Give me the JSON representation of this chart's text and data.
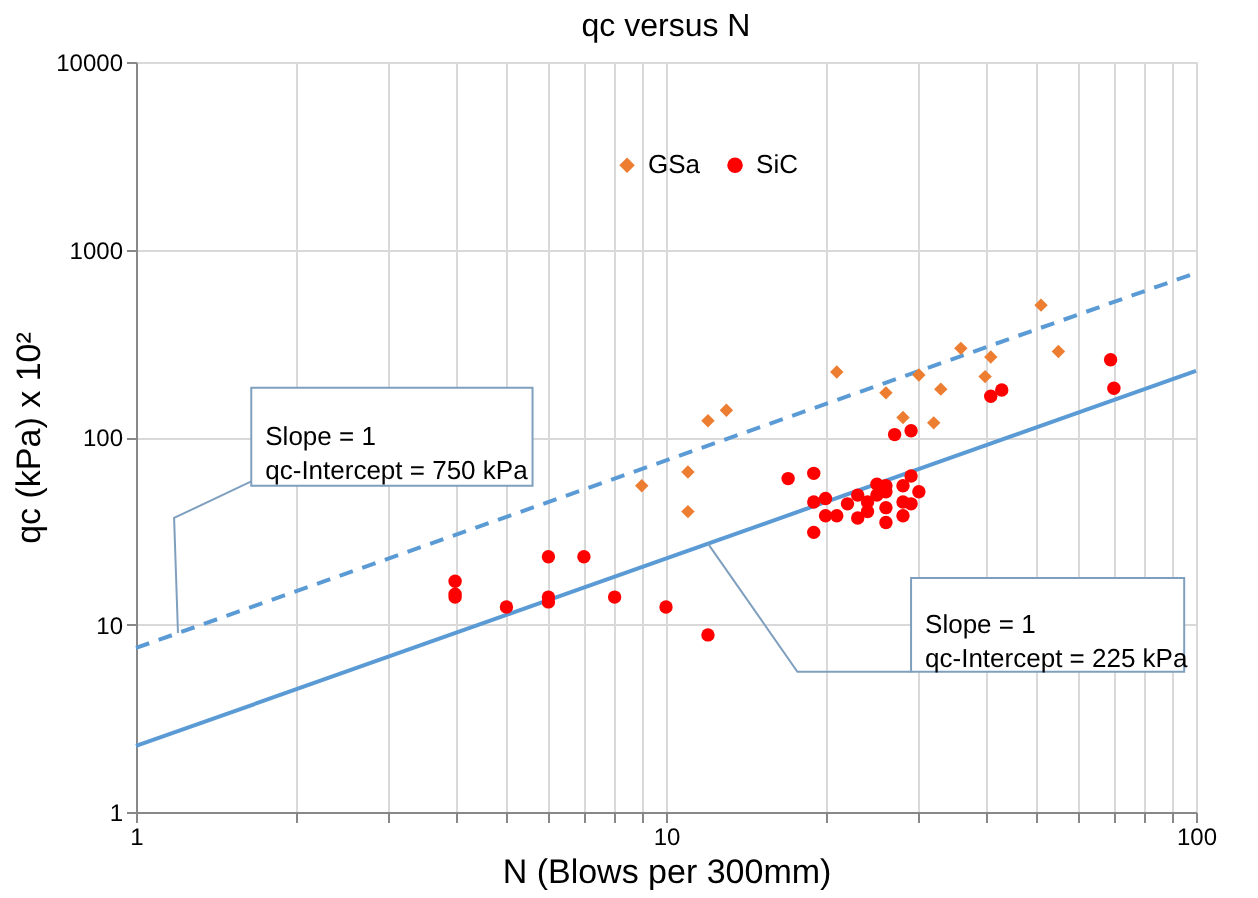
{
  "chart_data": {
    "type": "scatter",
    "title": "qc versus N",
    "xlabel": "N (Blows per 300mm)",
    "ylabel": "qc (kPa) x 10²",
    "log": "xy",
    "grid": true,
    "legend": "top",
    "xlim": [
      1,
      100
    ],
    "xticks": [
      1,
      {
        "value": 2,
        "label": null
      },
      {
        "value": 3,
        "label": null
      },
      {
        "value": 4,
        "label": null
      },
      {
        "value": 5,
        "label": null
      },
      {
        "value": 6,
        "label": null
      },
      {
        "value": 7,
        "label": null
      },
      {
        "value": 8,
        "label": null
      },
      {
        "value": 9,
        "label": null
      },
      10,
      {
        "value": 20,
        "label": null
      },
      {
        "value": 30,
        "label": null
      },
      {
        "value": 40,
        "label": null
      },
      {
        "value": 50,
        "label": null
      },
      {
        "value": 60,
        "label": null
      },
      {
        "value": 70,
        "label": null
      },
      {
        "value": 80,
        "label": null
      },
      {
        "value": 90,
        "label": null
      },
      100
    ],
    "ylim": [
      1,
      10000
    ],
    "yticks": [
      1,
      10,
      100,
      1000,
      10000
    ],
    "series": [
      {
        "name": "GSa",
        "marker": "diamond",
        "color": "#ed7d31",
        "x": [
          9,
          12,
          13,
          11,
          11,
          21,
          26,
          30,
          28,
          33,
          32,
          36,
          40,
          41,
          51,
          55
        ],
        "values": [
          55,
          122,
          139,
          65,
          40,
          222,
          172,
          214,
          127,
          180,
          119,
          297,
          210,
          267,
          505,
          286
        ]
      },
      {
        "name": "SiC",
        "marker": "circle",
        "color": "#ff0000",
        "x": [
          4,
          4,
          4,
          5,
          6,
          6,
          6,
          7,
          8,
          10,
          12,
          17,
          19,
          19,
          19,
          20,
          20,
          21,
          22,
          23,
          23,
          24,
          24,
          25,
          25,
          26,
          26,
          26,
          26,
          27,
          28,
          28,
          28,
          29,
          29,
          29,
          30,
          41,
          43,
          69,
          70
        ],
        "values": [
          17,
          14.5,
          14,
          12.4,
          23,
          14,
          13.2,
          23,
          14,
          12.4,
          8.8,
          60,
          64,
          45,
          31,
          47,
          38,
          38,
          44,
          49,
          37,
          45,
          40,
          56,
          49,
          55,
          51,
          42,
          35,
          103,
          55,
          45,
          38,
          62,
          108,
          44,
          51,
          165,
          178,
          258,
          182
        ]
      },
      {
        "type": "line",
        "line_style": "solid",
        "marker": "none",
        "color": "#5b9bd5",
        "x": [
          1,
          100
        ],
        "values": [
          2.25,
          225
        ]
      },
      {
        "type": "line",
        "line_style": "dashed",
        "marker": "none",
        "color": "#5b9bd5",
        "x": [
          1,
          100
        ],
        "values": [
          7.5,
          750
        ]
      }
    ],
    "annotations": [
      {
        "text": "Slope = 1\nqc-Intercept = 750 kPa",
        "x": 1.2,
        "y": 9
      },
      {
        "text": "Slope = 1\nqc-Intercept = 225 kPa",
        "x": 12,
        "y": 27
      }
    ]
  }
}
